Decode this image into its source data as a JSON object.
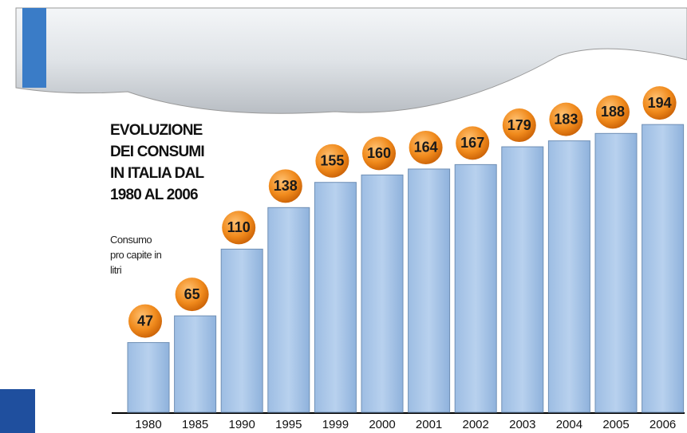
{
  "chart_data": {
    "type": "bar",
    "title": "EVOLUZIONE DEI CONSUMI IN ITALIA DAL 1980 AL 2006",
    "subtitle": "Consumo pro capite in litri",
    "categories": [
      "1980",
      "1985",
      "1990",
      "1995",
      "1999",
      "2000",
      "2001",
      "2002",
      "2003",
      "2004",
      "2005",
      "2006"
    ],
    "values": [
      47,
      65,
      110,
      138,
      155,
      160,
      164,
      167,
      179,
      183,
      188,
      194
    ],
    "color": "#a9c6e8"
  }
}
